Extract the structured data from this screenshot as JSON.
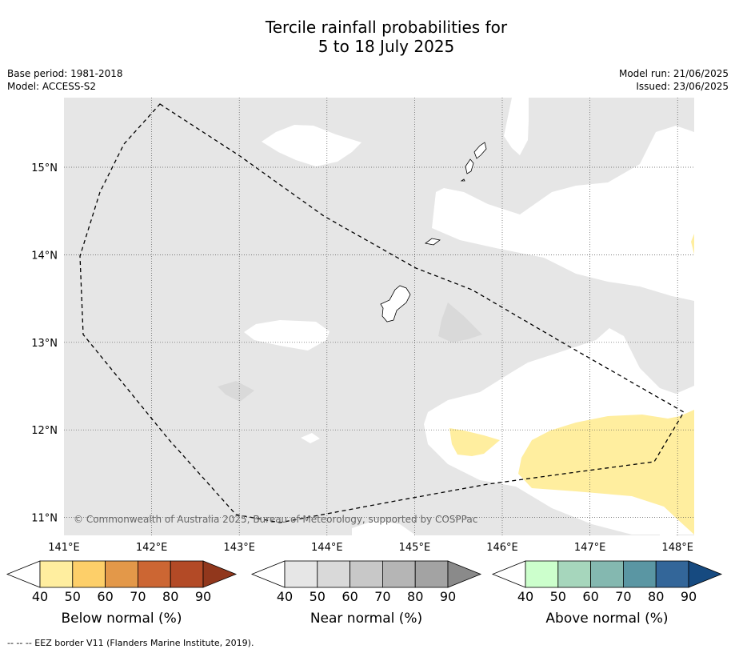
{
  "title": {
    "line1": "Tercile rainfall probabilities for",
    "line2": "5 to 18 July 2025"
  },
  "meta": {
    "base_period": "Base period: 1981-2018",
    "model": "Model: ACCESS-S2",
    "model_run": "Model run: 21/06/2025",
    "issued": "Issued: 23/06/2025"
  },
  "map": {
    "lon_range": [
      141.0,
      148.2
    ],
    "lat_range": [
      10.8,
      15.8
    ],
    "lon_ticks": [
      {
        "value": 141,
        "label": "141°E"
      },
      {
        "value": 142,
        "label": "142°E"
      },
      {
        "value": 143,
        "label": "143°E"
      },
      {
        "value": 144,
        "label": "144°E"
      },
      {
        "value": 145,
        "label": "145°E"
      },
      {
        "value": 146,
        "label": "146°E"
      },
      {
        "value": 147,
        "label": "147°E"
      },
      {
        "value": 148,
        "label": "148°E"
      }
    ],
    "lat_ticks": [
      {
        "value": 15,
        "label": "15°N"
      },
      {
        "value": 14,
        "label": "14°N"
      },
      {
        "value": 13,
        "label": "13°N"
      },
      {
        "value": 12,
        "label": "12°N"
      },
      {
        "value": 11,
        "label": "11°N"
      }
    ],
    "copyright": "© Commonwealth of Australia 2025, Bureau of Meteorology, supported by COSPPac",
    "colors": {
      "background_near": "#e6e6e6",
      "no_signal": "#ffffff",
      "near_50": "#d9d9d9",
      "below_40": "#ffee9f"
    }
  },
  "legends": [
    {
      "label": "Below normal (%)",
      "ticks": [
        "40",
        "50",
        "60",
        "70",
        "80",
        "90"
      ],
      "colors": [
        "#ffffff",
        "#ffee9f",
        "#fdcf69",
        "#e39849",
        "#cc6633",
        "#b34a26",
        "#91371c"
      ]
    },
    {
      "label": "Near normal (%)",
      "ticks": [
        "40",
        "50",
        "60",
        "70",
        "80",
        "90"
      ],
      "colors": [
        "#ffffff",
        "#e6e6e6",
        "#d9d9d9",
        "#c8c8c8",
        "#b5b5b5",
        "#a3a3a3",
        "#8a8a8a"
      ]
    },
    {
      "label": "Above normal (%)",
      "ticks": [
        "40",
        "50",
        "60",
        "70",
        "80",
        "90"
      ],
      "colors": [
        "#ffffff",
        "#ccffcc",
        "#a6d6bc",
        "#84b8b0",
        "#5a96a3",
        "#336699",
        "#164a80"
      ]
    }
  ],
  "footnote": "--  --  -- EEZ border V11 (Flanders Marine Institute, 2019)."
}
